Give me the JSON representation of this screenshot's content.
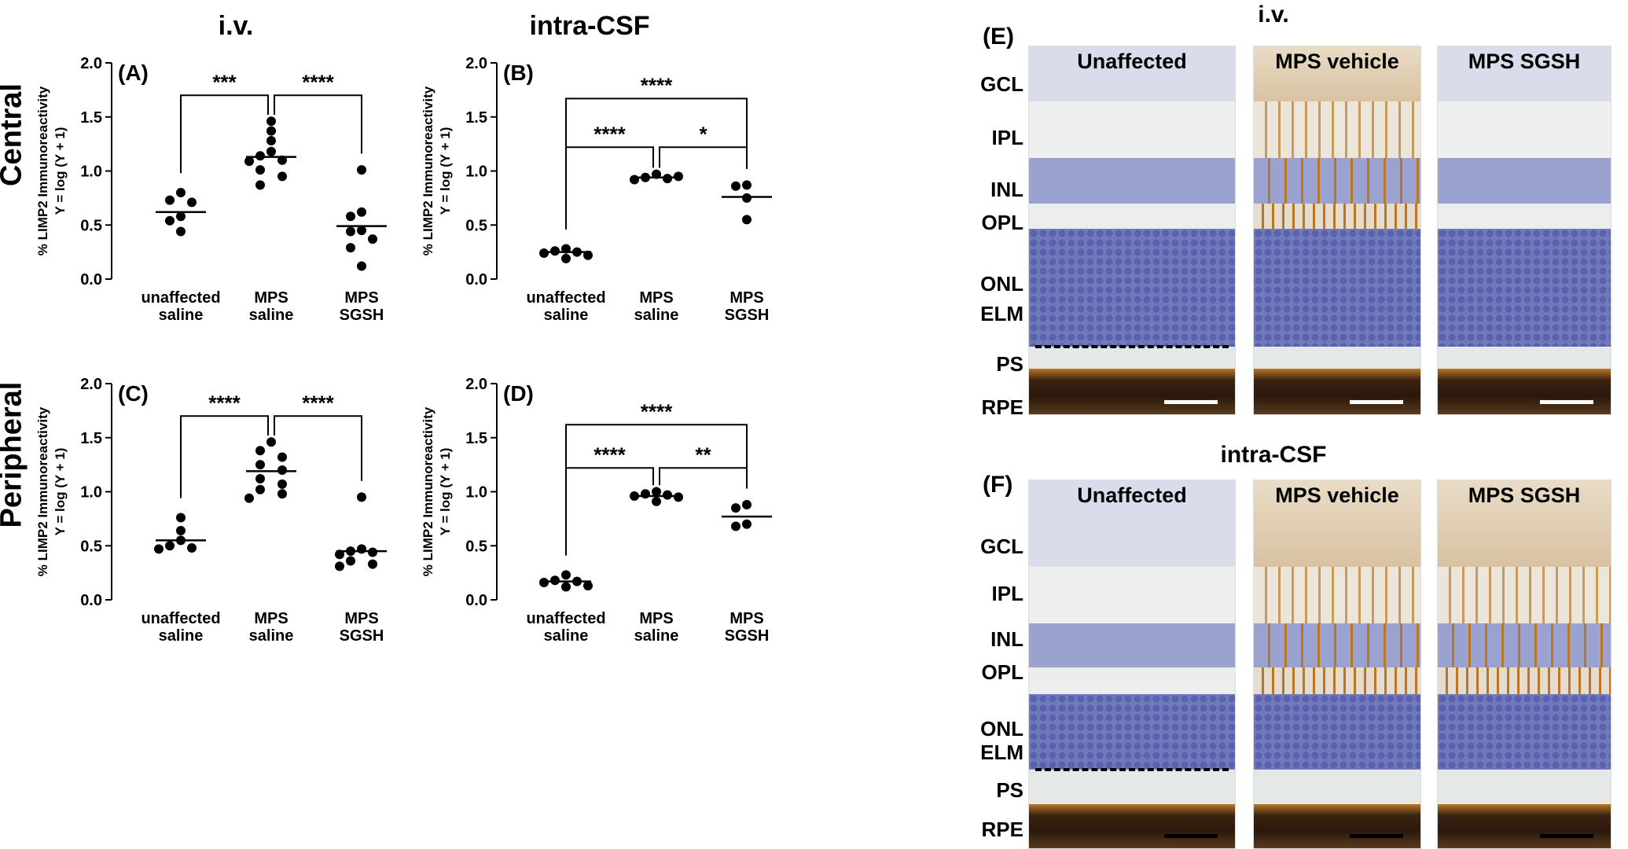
{
  "titles": {
    "iv_top": "i.v.",
    "csf_top": "intra-CSF",
    "iv_right": "i.v.",
    "csf_right": "intra-CSF",
    "row_central": "Central",
    "row_peripheral": "Peripheral"
  },
  "chart_data": [
    {
      "type": "scatter",
      "panel": "(A)",
      "categories": [
        [
          "unaffected",
          "saline"
        ],
        [
          "MPS",
          "saline"
        ],
        [
          "MPS",
          "SGSH"
        ]
      ],
      "ylabel_line1": "% LIMP2 Immunoreactivity",
      "ylabel_line2": "Y = log (Y + 1)",
      "ylim": [
        0,
        2.0
      ],
      "yticks": [
        "0.0",
        "0.5",
        "1.0",
        "1.5",
        "2.0"
      ],
      "medians": [
        0.62,
        1.13,
        0.49
      ],
      "points": [
        [
          0.8,
          0.73,
          0.71,
          0.58,
          0.54,
          0.44
        ],
        [
          1.46,
          1.37,
          1.28,
          1.18,
          1.14,
          1.1,
          1.09,
          1.01,
          0.95,
          0.87
        ],
        [
          1.01,
          0.62,
          0.58,
          0.45,
          0.44,
          0.37,
          0.29,
          0.12
        ]
      ],
      "brackets": [
        {
          "from": 0,
          "to": 1,
          "level": 1.7,
          "label": "***"
        },
        {
          "from": 1,
          "to": 2,
          "level": 1.7,
          "label": "****"
        }
      ]
    },
    {
      "type": "scatter",
      "panel": "(B)",
      "categories": [
        [
          "unaffected",
          "saline"
        ],
        [
          "MPS",
          "saline"
        ],
        [
          "MPS",
          "SGSH"
        ]
      ],
      "ylabel_line1": "% LIMP2 Immunoreactivity",
      "ylabel_line2": "Y = log (Y + 1)",
      "ylim": [
        0,
        2.0
      ],
      "yticks": [
        "0.0",
        "0.5",
        "1.0",
        "1.5",
        "2.0"
      ],
      "medians": [
        0.25,
        0.94,
        0.76
      ],
      "points": [
        [
          0.28,
          0.26,
          0.25,
          0.24,
          0.22,
          0.19
        ],
        [
          0.97,
          0.94,
          0.93,
          0.92,
          0.95
        ],
        [
          0.87,
          0.86,
          0.75,
          0.55
        ]
      ],
      "brackets": [
        {
          "from": 0,
          "to": 2,
          "level": 1.67,
          "label": "****"
        },
        {
          "from": 0,
          "to": 1,
          "level": 1.22,
          "label": "****"
        },
        {
          "from": 1,
          "to": 2,
          "level": 1.22,
          "label": "*"
        }
      ]
    },
    {
      "type": "scatter",
      "panel": "(C)",
      "categories": [
        [
          "unaffected",
          "saline"
        ],
        [
          "MPS",
          "saline"
        ],
        [
          "MPS",
          "SGSH"
        ]
      ],
      "ylabel_line1": "% LIMP2 Immunoreactivity",
      "ylabel_line2": "Y = log (Y + 1)",
      "ylim": [
        0,
        2.0
      ],
      "yticks": [
        "0.0",
        "0.5",
        "1.0",
        "1.5",
        "2.0"
      ],
      "medians": [
        0.55,
        1.19,
        0.45
      ],
      "points": [
        [
          0.76,
          0.64,
          0.55,
          0.5,
          0.48,
          0.47
        ],
        [
          1.46,
          1.38,
          1.32,
          1.25,
          1.2,
          1.12,
          1.07,
          1.02,
          0.98,
          0.94
        ],
        [
          0.95,
          0.47,
          0.45,
          0.44,
          0.42,
          0.36,
          0.33,
          0.31
        ]
      ],
      "brackets": [
        {
          "from": 0,
          "to": 1,
          "level": 1.7,
          "label": "****"
        },
        {
          "from": 1,
          "to": 2,
          "level": 1.7,
          "label": "****"
        }
      ]
    },
    {
      "type": "scatter",
      "panel": "(D)",
      "categories": [
        [
          "unaffected",
          "saline"
        ],
        [
          "MPS",
          "saline"
        ],
        [
          "MPS",
          "SGSH"
        ]
      ],
      "ylabel_line1": "% LIMP2 Immunoreactivity",
      "ylabel_line2": "Y = log (Y + 1)",
      "ylim": [
        0,
        2.0
      ],
      "yticks": [
        "0.0",
        "0.5",
        "1.0",
        "1.5",
        "2.0"
      ],
      "medians": [
        0.17,
        0.96,
        0.77
      ],
      "points": [
        [
          0.23,
          0.18,
          0.17,
          0.16,
          0.13,
          0.12
        ],
        [
          1.0,
          0.98,
          0.97,
          0.96,
          0.95,
          0.91
        ],
        [
          0.88,
          0.85,
          0.7,
          0.68
        ]
      ],
      "brackets": [
        {
          "from": 0,
          "to": 2,
          "level": 1.62,
          "label": "****"
        },
        {
          "from": 0,
          "to": 1,
          "level": 1.22,
          "label": "****"
        },
        {
          "from": 1,
          "to": 2,
          "level": 1.22,
          "label": "**"
        }
      ]
    }
  ],
  "micrographs": {
    "E": {
      "letter": "(E)",
      "titles": [
        "Unaffected",
        "MPS vehicle",
        "MPS SGSH"
      ],
      "layers": [
        "GCL",
        "IPL",
        "INL",
        "OPL",
        "ONL",
        "ELM",
        "PS",
        "RPE"
      ]
    },
    "F": {
      "letter": "(F)",
      "titles": [
        "Unaffected",
        "MPS vehicle",
        "MPS SGSH"
      ],
      "layers": [
        "GCL",
        "IPL",
        "INL",
        "OPL",
        "ONL",
        "ELM",
        "PS",
        "RPE"
      ]
    }
  },
  "colors": {
    "nuclei": "#5b62ad",
    "nuclei_light": "#9aa3cf",
    "background": "#e8ecec",
    "rpe": "#3c2412",
    "stain": "#b87626"
  }
}
